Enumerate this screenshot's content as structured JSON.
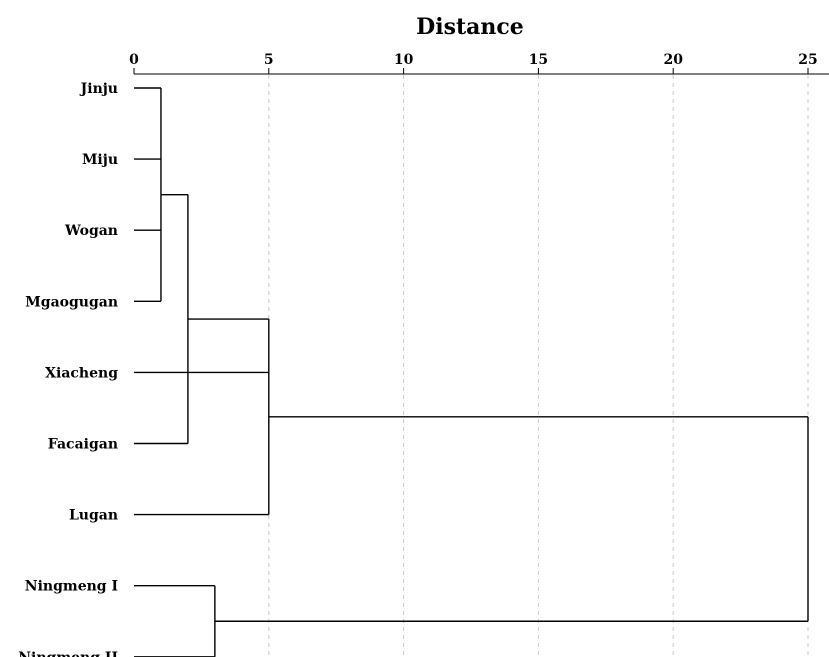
{
  "chart_data": {
    "type": "dendrogram",
    "title": "Distance",
    "x_axis": {
      "position": "top",
      "range": [
        0,
        25
      ],
      "ticks": [
        0,
        5,
        10,
        15,
        20,
        25
      ],
      "grid": "dashed-vertical"
    },
    "leaves": [
      "Jinju",
      "Miju",
      "Wogan",
      "Mgaogugan",
      "Xiacheng",
      "Facaigan",
      "Lugan",
      "Ningmeng I",
      "Ningmeng II"
    ],
    "merges": [
      {
        "id": "A",
        "children": [
          "Jinju",
          "Miju",
          "Wogan",
          "Mgaogugan"
        ],
        "distance": 1
      },
      {
        "id": "B",
        "children": [
          "A",
          "Facaigan"
        ],
        "distance": 2
      },
      {
        "id": "C",
        "children": [
          "Xiacheng",
          "B",
          "Lugan"
        ],
        "distance": 5
      },
      {
        "id": "D",
        "children": [
          "Ningmeng I",
          "Ningmeng II"
        ],
        "distance": 3
      },
      {
        "id": "E",
        "children": [
          "C",
          "D"
        ],
        "distance": 25
      }
    ]
  }
}
